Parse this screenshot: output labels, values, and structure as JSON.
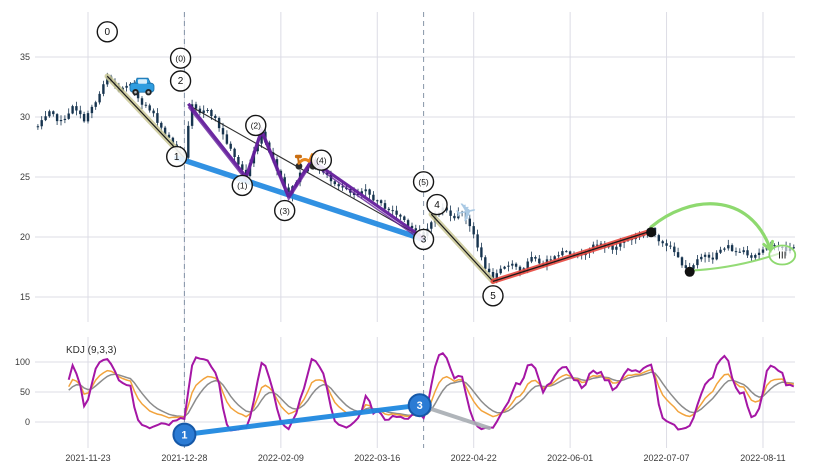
{
  "figure": {
    "bg": "#ffffff",
    "grid_color": "#dcdce5",
    "axis_text_color": "#3a3a3a"
  },
  "x_axis": {
    "labels": [
      "2021-11-23",
      "2021-12-28",
      "2022-02-09",
      "2022-03-16",
      "2022-04-22",
      "2022-06-01",
      "2022-07-07",
      "2022-08-11"
    ],
    "label_days": [
      0,
      25,
      50,
      75,
      100,
      125,
      150,
      175
    ]
  },
  "price_panel": {
    "y_ticks": [
      35,
      30,
      25,
      20,
      15
    ]
  },
  "kdj_panel": {
    "label": "KDJ (9,3,3)",
    "y_ticks": [
      100,
      50,
      0
    ]
  },
  "chart_data": {
    "type": "candlestick",
    "title": "",
    "price_axis_range": [
      13,
      37.5
    ],
    "kdj_axis_range": [
      -42,
      142
    ],
    "day_range": [
      -13,
      183
    ],
    "colors": {
      "candle": "#17344f",
      "zigzag_purple": "#641e9c",
      "trend_blue": "#1f88e0",
      "band_olive": "#c9c795",
      "band_red": "#e8483f",
      "trend_black": "#1a1a1a",
      "arrow_green": "#8ed96f",
      "dashed_line": "#7e8fa3",
      "kdj_j": "#a516a5",
      "kdj_k": "#f2a33c",
      "kdj_d": "#8c8c8c",
      "marker_blue_fill": "#2b7bd4",
      "marker_blue_stroke": "#1558a8",
      "dot_black": "#111111"
    },
    "price_waypoints": [
      [
        -13,
        29.2
      ],
      [
        -10,
        30.3
      ],
      [
        -7,
        29.6
      ],
      [
        -4,
        30.8
      ],
      [
        -1,
        29.8
      ],
      [
        2,
        31.2
      ],
      [
        5,
        33.3
      ],
      [
        8,
        32.2
      ],
      [
        11,
        32.6
      ],
      [
        14,
        31.2
      ],
      [
        17,
        30.2
      ],
      [
        20,
        28.6
      ],
      [
        23,
        27.3
      ],
      [
        25,
        26.7
      ],
      [
        26,
        29.3
      ],
      [
        27,
        30.9
      ],
      [
        29,
        30.2
      ],
      [
        31,
        30.7
      ],
      [
        33,
        29.8
      ],
      [
        35,
        28.5
      ],
      [
        38,
        26.6
      ],
      [
        41,
        25.1
      ],
      [
        43,
        27.1
      ],
      [
        45,
        28.8
      ],
      [
        48,
        26.4
      ],
      [
        50,
        25.0
      ],
      [
        52,
        23.5
      ],
      [
        55,
        25.3
      ],
      [
        58,
        26.3
      ],
      [
        60,
        25.6
      ],
      [
        63,
        24.8
      ],
      [
        66,
        24.1
      ],
      [
        69,
        23.4
      ],
      [
        72,
        23.8
      ],
      [
        75,
        22.9
      ],
      [
        78,
        22.3
      ],
      [
        81,
        21.7
      ],
      [
        84,
        20.8
      ],
      [
        87,
        20.0
      ],
      [
        89,
        21.4
      ],
      [
        92,
        22.4
      ],
      [
        95,
        21.7
      ],
      [
        97,
        22.2
      ],
      [
        99,
        21.0
      ],
      [
        101,
        19.1
      ],
      [
        103,
        17.5
      ],
      [
        105,
        16.4
      ],
      [
        107,
        17.2
      ],
      [
        110,
        17.9
      ],
      [
        112,
        17.1
      ],
      [
        115,
        18.2
      ],
      [
        118,
        17.7
      ],
      [
        121,
        18.5
      ],
      [
        124,
        18.9
      ],
      [
        127,
        18.4
      ],
      [
        130,
        19.1
      ],
      [
        133,
        19.4
      ],
      [
        136,
        19.0
      ],
      [
        139,
        19.7
      ],
      [
        142,
        20.0
      ],
      [
        144,
        20.3
      ],
      [
        146,
        20.6
      ],
      [
        148,
        19.8
      ],
      [
        150,
        19.4
      ],
      [
        152,
        18.7
      ],
      [
        154,
        17.8
      ],
      [
        156,
        17.2
      ],
      [
        158,
        18.0
      ],
      [
        160,
        18.6
      ],
      [
        162,
        18.3
      ],
      [
        164,
        18.9
      ],
      [
        166,
        19.2
      ],
      [
        168,
        18.7
      ],
      [
        170,
        18.9
      ],
      [
        172,
        18.4
      ],
      [
        175,
        18.9
      ],
      [
        178,
        19.4
      ],
      [
        181,
        18.9
      ],
      [
        183,
        19.1
      ]
    ],
    "overlays": {
      "dashed_vline_days": [
        25,
        87
      ],
      "olive_trends": [
        [
          [
            5,
            33.4
          ],
          [
            25,
            26.6
          ]
        ],
        [
          [
            89,
            21.9
          ],
          [
            105,
            16.3
          ]
        ]
      ],
      "black_wave_line": [
        [
          26,
          31.0
        ],
        [
          87,
          19.9
        ]
      ],
      "purple_zigzag": [
        [
          26,
          31.1
        ],
        [
          41,
          25.0
        ],
        [
          45,
          28.9
        ],
        [
          52,
          23.4
        ],
        [
          58,
          26.4
        ],
        [
          87,
          19.9
        ]
      ],
      "blue_trend": [
        [
          23,
          26.6
        ],
        [
          87,
          19.8
        ]
      ],
      "red_trend": [
        [
          105,
          16.3
        ],
        [
          146,
          20.5
        ]
      ],
      "green_arc": {
        "from_day": 146,
        "from_price": 20.5,
        "to_day": 177,
        "to_price": 18.9,
        "peak_price": 23.2
      },
      "green_line": [
        [
          156,
          17.2
        ],
        [
          179,
          18.6
        ]
      ],
      "black_dots": [
        [
          146,
          20.4
        ],
        [
          156,
          17.1
        ]
      ]
    },
    "annotations": [
      {
        "label": "0",
        "day": 5,
        "price": 37.1
      },
      {
        "label": "(0)",
        "day": 24,
        "price": 34.9
      },
      {
        "label": "2",
        "day": 24,
        "price": 33.0
      },
      {
        "label": "1",
        "day": 23,
        "price": 26.7
      },
      {
        "label": "(1)",
        "day": 40,
        "price": 24.3
      },
      {
        "label": "(2)",
        "day": 43.5,
        "price": 29.3
      },
      {
        "label": "(3)",
        "day": 51,
        "price": 22.2
      },
      {
        "label": "(4)",
        "day": 60.5,
        "price": 26.4
      },
      {
        "label": "(5)",
        "day": 87,
        "price": 24.6
      },
      {
        "label": "4",
        "day": 90.5,
        "price": 22.7
      },
      {
        "label": "3",
        "day": 87,
        "price": 19.8
      },
      {
        "label": "5",
        "day": 105,
        "price": 15.1
      }
    ],
    "wave_target": {
      "label": "III",
      "day": 180,
      "price": 18.5
    },
    "icons": [
      {
        "name": "car-icon",
        "day": 14,
        "price": 32.4
      },
      {
        "name": "scooter-icon",
        "day": 56.5,
        "price": 26.4
      },
      {
        "name": "plane-icon",
        "day": 98.5,
        "price": 22.0
      }
    ],
    "kdj": {
      "params": "9,3,3",
      "blue_trend": [
        {
          "label": "1",
          "day": 25,
          "value": -21
        },
        {
          "label": "3",
          "day": 86,
          "value": 28
        }
      ],
      "gray_segment": [
        [
          86,
          28
        ],
        [
          104,
          -10
        ]
      ]
    }
  }
}
